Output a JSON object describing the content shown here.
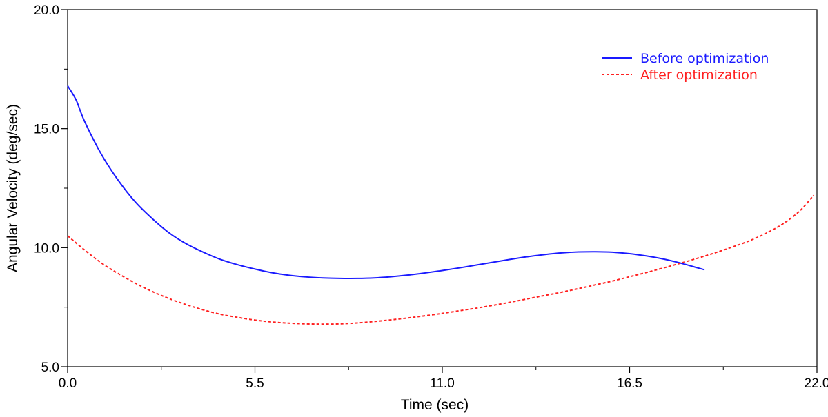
{
  "chart_data": {
    "type": "line",
    "title": "",
    "xlabel": "Time (sec)",
    "ylabel": "Angular Velocity (deg/sec)",
    "xlim": [
      0,
      22
    ],
    "ylim": [
      5,
      20
    ],
    "x_ticks": [
      "0.0",
      "5.5",
      "11.0",
      "16.5",
      "22.0"
    ],
    "y_ticks": [
      "5.0",
      "10.0",
      "15.0",
      "20.0"
    ],
    "grid": false,
    "legend_position": "top-right",
    "series": [
      {
        "name": "Before optimization",
        "color": "#1a1aff",
        "style": "solid",
        "points": [
          [
            0.0,
            16.8
          ],
          [
            0.25,
            16.2
          ],
          [
            0.5,
            15.3
          ],
          [
            1.0,
            13.9
          ],
          [
            1.5,
            12.8
          ],
          [
            2.0,
            11.9
          ],
          [
            2.5,
            11.2
          ],
          [
            3.0,
            10.6
          ],
          [
            3.5,
            10.15
          ],
          [
            4.0,
            9.8
          ],
          [
            4.5,
            9.5
          ],
          [
            5.0,
            9.28
          ],
          [
            5.5,
            9.1
          ],
          [
            6.0,
            8.95
          ],
          [
            6.5,
            8.84
          ],
          [
            7.0,
            8.77
          ],
          [
            7.5,
            8.73
          ],
          [
            8.0,
            8.71
          ],
          [
            8.5,
            8.71
          ],
          [
            9.0,
            8.73
          ],
          [
            9.5,
            8.78
          ],
          [
            10.0,
            8.85
          ],
          [
            10.5,
            8.94
          ],
          [
            11.0,
            9.04
          ],
          [
            11.5,
            9.15
          ],
          [
            12.0,
            9.27
          ],
          [
            12.5,
            9.39
          ],
          [
            13.0,
            9.51
          ],
          [
            13.5,
            9.62
          ],
          [
            14.0,
            9.71
          ],
          [
            14.5,
            9.78
          ],
          [
            15.0,
            9.82
          ],
          [
            15.5,
            9.83
          ],
          [
            16.0,
            9.81
          ],
          [
            16.5,
            9.75
          ],
          [
            17.0,
            9.65
          ],
          [
            17.5,
            9.52
          ],
          [
            18.0,
            9.35
          ],
          [
            18.5,
            9.15
          ],
          [
            18.7,
            9.07
          ]
        ]
      },
      {
        "name": "After optimization",
        "color": "#ff2020",
        "style": "dashed",
        "points": [
          [
            0.0,
            10.5
          ],
          [
            0.5,
            9.9
          ],
          [
            1.0,
            9.35
          ],
          [
            1.5,
            8.9
          ],
          [
            2.0,
            8.5
          ],
          [
            2.5,
            8.15
          ],
          [
            3.0,
            7.85
          ],
          [
            3.5,
            7.6
          ],
          [
            4.0,
            7.38
          ],
          [
            4.5,
            7.2
          ],
          [
            5.0,
            7.07
          ],
          [
            5.5,
            6.96
          ],
          [
            6.0,
            6.88
          ],
          [
            6.5,
            6.83
          ],
          [
            7.0,
            6.8
          ],
          [
            7.5,
            6.79
          ],
          [
            8.0,
            6.8
          ],
          [
            8.5,
            6.84
          ],
          [
            9.0,
            6.9
          ],
          [
            9.5,
            6.97
          ],
          [
            10.0,
            7.05
          ],
          [
            10.5,
            7.14
          ],
          [
            11.0,
            7.24
          ],
          [
            11.5,
            7.35
          ],
          [
            12.0,
            7.46
          ],
          [
            12.5,
            7.58
          ],
          [
            13.0,
            7.71
          ],
          [
            13.5,
            7.85
          ],
          [
            14.0,
            7.99
          ],
          [
            14.5,
            8.13
          ],
          [
            15.0,
            8.28
          ],
          [
            15.5,
            8.44
          ],
          [
            16.0,
            8.6
          ],
          [
            16.5,
            8.78
          ],
          [
            17.0,
            8.96
          ],
          [
            17.5,
            9.15
          ],
          [
            18.0,
            9.35
          ],
          [
            18.5,
            9.56
          ],
          [
            19.0,
            9.78
          ],
          [
            19.5,
            10.02
          ],
          [
            20.0,
            10.28
          ],
          [
            20.5,
            10.6
          ],
          [
            21.0,
            11.0
          ],
          [
            21.5,
            11.55
          ],
          [
            21.9,
            12.2
          ]
        ]
      }
    ]
  }
}
